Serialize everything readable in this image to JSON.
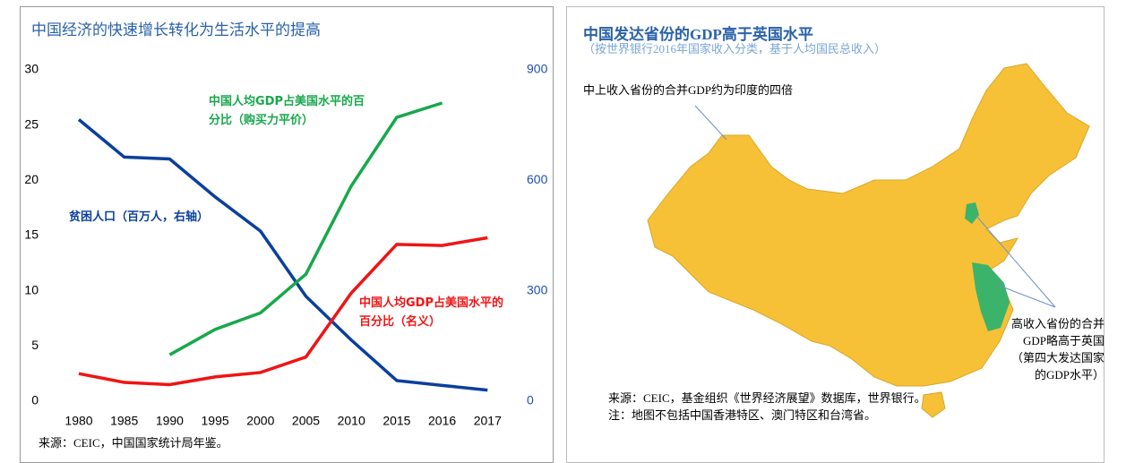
{
  "chart_data": {
    "type": "line",
    "title": "中国经济的快速增长转化为生活水平的提高",
    "categories": [
      "1980",
      "1985",
      "1990",
      "1995",
      "2000",
      "2005",
      "2010",
      "2015",
      "2016",
      "2017"
    ],
    "series": [
      {
        "name": "贫困人口（百万人，右轴）",
        "color": "#0b3f9c",
        "axis": "y2",
        "values": [
          765,
          663,
          658,
          555,
          462,
          285,
          166,
          56,
          43,
          30
        ]
      },
      {
        "name": "中国人均GDP占美国水平的百分比（购买力平价）",
        "color": "#17a84b",
        "values": [
          null,
          null,
          4.2,
          6.5,
          8,
          11.5,
          19.5,
          25.7,
          27,
          null
        ]
      },
      {
        "name": "中国人均GDP占美国水平的百分比（名义）",
        "color": "#f01414",
        "values": [
          2.5,
          1.7,
          1.5,
          2.2,
          2.6,
          4.0,
          9.8,
          14.2,
          14.1,
          14.8
        ]
      }
    ],
    "ylim": [
      0,
      30
    ],
    "yticks": [
      0,
      5,
      10,
      15,
      20,
      25,
      30
    ],
    "y2lim": [
      0,
      900
    ],
    "y2ticks": [
      0,
      300,
      600,
      900
    ],
    "y2color": "#1f4fb0",
    "source": "来源：CEIC，中国国家统计局年鉴。"
  },
  "map": {
    "title": "中国发达省份的GDP高于英国水平",
    "subtitle": "（按世界银行2016年国家收入分类，基于人均国民总收入）",
    "annotations": [
      "中上收入省份的合并GDP约为印度的四倍",
      "高收入省份的合并GDP略高于英国（第四大发达国家的GDP水平）"
    ],
    "notes": [
      "来源：CEIC，基金组织《世界经济展望》数据库，世界银行。",
      "注：地图不包括中国香港特区、澳门特区和台湾省。"
    ]
  }
}
